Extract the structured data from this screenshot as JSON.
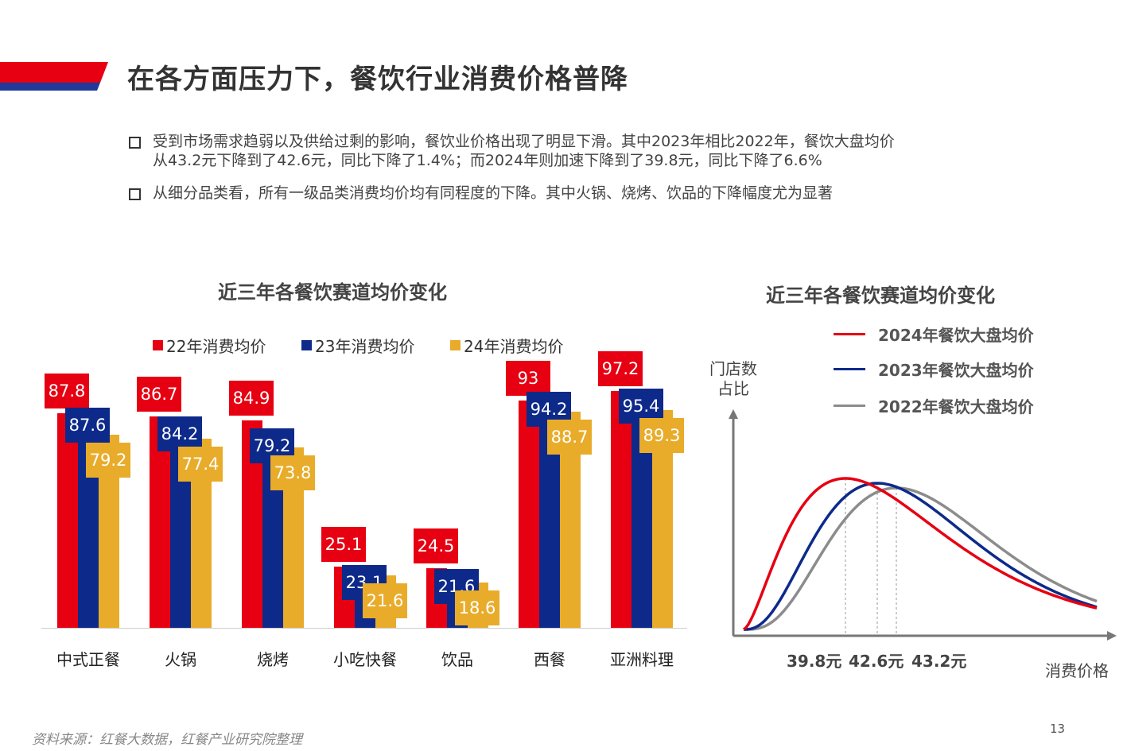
{
  "header": {
    "title": "在各方面压力下，餐饮行业消费价格普降"
  },
  "bullets": [
    {
      "lines": [
        "受到市场需求趋弱以及供给过剩的影响，餐饮业价格出现了明显下滑。其中2023年相比2022年，餐饮大盘均价",
        "从43.2元下降到了42.6元，同比下降了1.4%；而2024年则加速下降到了39.8元，同比下降了6.6%"
      ]
    },
    {
      "lines": [
        "从细分品类看，所有一级品类消费均价均有同程度的下降。其中火锅、烧烤、饮品的下降幅度尤为显著"
      ]
    }
  ],
  "chart_data": [
    {
      "type": "bar",
      "title": "近三年各餐饮赛道均价变化",
      "categories": [
        "中式正餐",
        "火锅",
        "烧烤",
        "小吃快餐",
        "饮品",
        "西餐",
        "亚洲料理"
      ],
      "series": [
        {
          "name": "22年消费均价",
          "color": "#e60012",
          "values": [
            87.8,
            86.7,
            84.9,
            25.1,
            24.5,
            93,
            97.2
          ]
        },
        {
          "name": "23年消费均价",
          "color": "#0d2a8a",
          "values": [
            87.6,
            84.2,
            79.2,
            23.1,
            21.6,
            94.2,
            95.4
          ]
        },
        {
          "name": "24年消费均价",
          "color": "#e8ac2a",
          "values": [
            79.2,
            77.4,
            73.8,
            21.6,
            18.6,
            88.7,
            89.3
          ]
        }
      ],
      "legend": "top",
      "data_labels": true,
      "ylim": [
        0,
        100
      ]
    },
    {
      "type": "line",
      "title": "近三年各餐饮赛道均价变化",
      "ylabel": "门店数\n占比",
      "xlabel": "消费价格",
      "x_tick_labels": [
        "39.8元",
        "42.6元",
        "43.2元"
      ],
      "series": [
        {
          "name": "2024年餐饮大盘均价",
          "color": "#e60012",
          "peak": 39.8
        },
        {
          "name": "2023年餐饮大盘均价",
          "color": "#0d2a8a",
          "peak": 42.6
        },
        {
          "name": "2022年餐饮大盘均价",
          "color": "#8c8c8c",
          "peak": 43.2
        }
      ],
      "legend": "top-right"
    }
  ],
  "footer": {
    "source": "资料来源：红餐大数据，红餐产业研究院整理",
    "page": "13"
  }
}
